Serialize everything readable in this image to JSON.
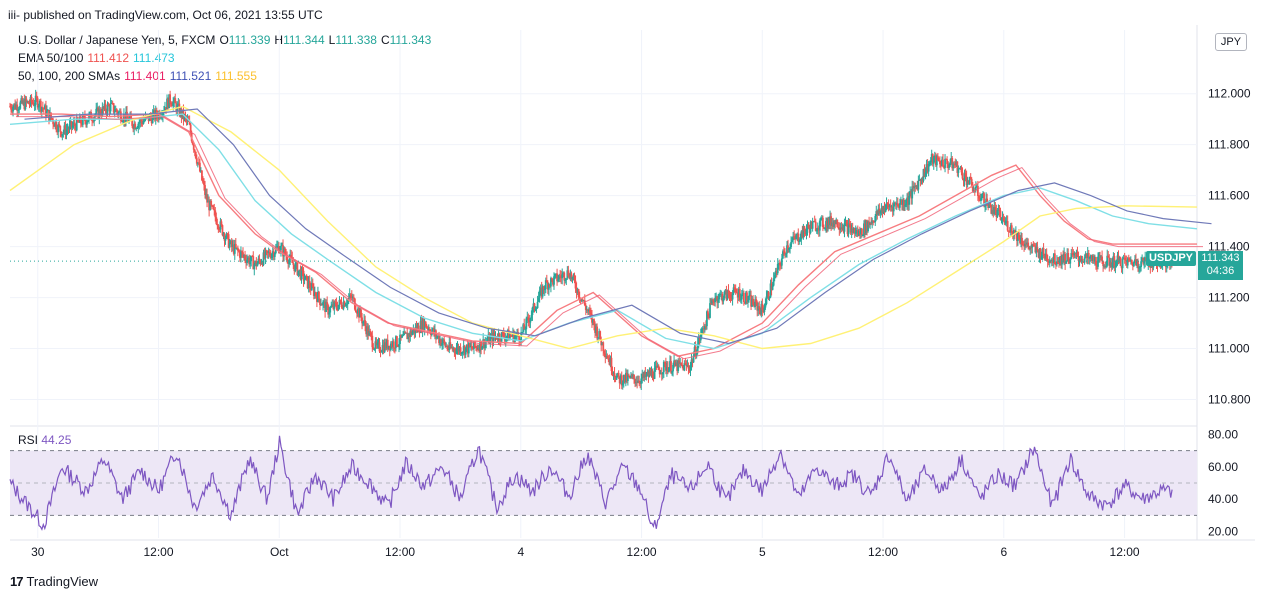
{
  "header": {
    "published": "iii- published on TradingView.com, Oct 06, 2021 13:55 UTC"
  },
  "legend": {
    "symbol": "U.S. Dollar / Japanese Yen, 5, FXCM",
    "open_label": "O",
    "open": "111.339",
    "high_label": "H",
    "high": "111.344",
    "low_label": "L",
    "low": "111.338",
    "close_label": "C",
    "close": "111.343",
    "ema_label": "EMA 50/100",
    "ema50": "111.412",
    "ema100": "111.473",
    "sma_label": "50, 100, 200 SMAs",
    "sma50": "111.401",
    "sma100": "111.521",
    "sma200": "111.555"
  },
  "currency_badge": "JPY",
  "last_price_tag": {
    "symbol": "USDJPY",
    "price": "111.343",
    "countdown": "04:36"
  },
  "rsi": {
    "label": "RSI",
    "value": "44.25"
  },
  "colors": {
    "up": "#26a69a",
    "down": "#ef5350",
    "ema50": "#f77c80",
    "ema100": "#7fdfe6",
    "sma50": "#f05a70",
    "sma100": "#6f79b8",
    "sma200": "#fff176",
    "rsi": "#7e57c2",
    "rsi_band": "#ede7f6",
    "tag": "#26a69a"
  },
  "footer": {
    "brand": "TradingView"
  },
  "chart_data": [
    {
      "type": "line",
      "subtype": "candlestick-with-moving-averages",
      "title": "U.S. Dollar / Japanese Yen, 5, FXCM",
      "ylim": [
        110.7,
        112.25
      ],
      "y_ticks": [
        "112.000",
        "111.800",
        "111.600",
        "111.400",
        "111.200",
        "111.000",
        "110.800"
      ],
      "y_tick_values": [
        112.0,
        111.8,
        111.6,
        111.4,
        111.2,
        111.0,
        110.8
      ],
      "x_ticks": [
        "30",
        "12:00",
        "Oct",
        "12:00",
        "4",
        "12:00",
        "5",
        "12:00",
        "6",
        "12:00"
      ],
      "x_tick_positions": [
        0.0,
        1.0,
        2.0,
        3.0,
        4.0,
        5.0,
        6.0,
        7.0,
        8.0,
        9.0
      ],
      "x_range": [
        -0.23,
        9.6
      ],
      "last_price": 111.343,
      "series": [
        {
          "name": "price",
          "x": [
            -0.23,
            0.0,
            0.2,
            0.4,
            0.6,
            0.8,
            1.0,
            1.1,
            1.25,
            1.4,
            1.6,
            1.8,
            2.0,
            2.2,
            2.4,
            2.6,
            2.8,
            3.0,
            3.2,
            3.4,
            3.6,
            3.8,
            4.0,
            4.2,
            4.4,
            4.6,
            4.8,
            5.0,
            5.2,
            5.4,
            5.6,
            5.8,
            6.0,
            6.2,
            6.4,
            6.6,
            6.8,
            7.0,
            7.2,
            7.4,
            7.6,
            7.8,
            8.0,
            8.2,
            8.4,
            8.6,
            8.8,
            9.0,
            9.2,
            9.4,
            9.6
          ],
          "y": [
            111.95,
            111.97,
            111.85,
            111.9,
            111.95,
            111.88,
            111.92,
            111.98,
            111.88,
            111.58,
            111.4,
            111.33,
            111.4,
            111.28,
            111.15,
            111.2,
            111.0,
            111.03,
            111.1,
            111.0,
            111.0,
            111.05,
            111.05,
            111.25,
            111.3,
            111.1,
            110.88,
            110.88,
            110.93,
            110.93,
            111.2,
            111.22,
            111.15,
            111.4,
            111.48,
            111.5,
            111.45,
            111.55,
            111.58,
            111.74,
            111.72,
            111.6,
            111.5,
            111.4,
            111.35,
            111.36,
            111.34,
            111.34,
            111.34,
            111.34,
            111.343
          ]
        },
        {
          "name": "EMA 50",
          "x": [
            -0.23,
            0.2,
            0.6,
            1.0,
            1.25,
            1.5,
            1.8,
            2.0,
            2.3,
            2.6,
            2.9,
            3.2,
            3.6,
            4.0,
            4.3,
            4.6,
            5.0,
            5.3,
            5.6,
            6.0,
            6.3,
            6.6,
            7.0,
            7.3,
            7.6,
            7.9,
            8.1,
            8.3,
            8.5,
            8.7,
            8.9,
            9.1,
            9.25,
            9.4,
            9.6
          ],
          "y": [
            111.92,
            111.92,
            111.91,
            111.92,
            111.85,
            111.6,
            111.45,
            111.38,
            111.3,
            111.18,
            111.1,
            111.07,
            111.03,
            111.02,
            111.15,
            111.22,
            111.05,
            110.97,
            111.0,
            111.1,
            111.25,
            111.38,
            111.46,
            111.52,
            111.6,
            111.68,
            111.72,
            111.6,
            111.5,
            111.43,
            111.41,
            111.41,
            111.41,
            111.41,
            111.41
          ]
        },
        {
          "name": "EMA 100",
          "x": [
            -0.23,
            0.3,
            0.8,
            1.2,
            1.5,
            1.8,
            2.1,
            2.4,
            2.8,
            3.2,
            3.6,
            4.0,
            4.4,
            4.8,
            5.2,
            5.6,
            6.0,
            6.4,
            6.8,
            7.2,
            7.6,
            8.0,
            8.3,
            8.6,
            8.9,
            9.2,
            9.6
          ],
          "y": [
            111.88,
            111.9,
            111.9,
            111.92,
            111.78,
            111.58,
            111.45,
            111.35,
            111.22,
            111.12,
            111.06,
            111.03,
            111.1,
            111.15,
            111.04,
            111.0,
            111.06,
            111.2,
            111.33,
            111.43,
            111.52,
            111.6,
            111.63,
            111.58,
            111.52,
            111.49,
            111.47
          ]
        },
        {
          "name": "SMA 200",
          "x": [
            -0.23,
            0.3,
            0.8,
            1.2,
            1.6,
            2.0,
            2.4,
            2.8,
            3.2,
            3.6,
            4.0,
            4.4,
            4.8,
            5.2,
            5.6,
            6.0,
            6.4,
            6.8,
            7.2,
            7.6,
            8.0,
            8.3,
            8.6,
            9.0,
            9.6
          ],
          "y": [
            111.62,
            111.8,
            111.9,
            111.95,
            111.85,
            111.7,
            111.5,
            111.32,
            111.2,
            111.1,
            111.05,
            111.0,
            111.05,
            111.08,
            111.05,
            111.0,
            111.02,
            111.08,
            111.18,
            111.3,
            111.42,
            111.52,
            111.55,
            111.56,
            111.555
          ]
        }
      ]
    },
    {
      "type": "line",
      "title": "RSI",
      "ylim": [
        16,
        84
      ],
      "y_ticks": [
        "80.00",
        "60.00",
        "40.00",
        "20.00"
      ],
      "y_tick_values": [
        80,
        60,
        40,
        20
      ],
      "bands": [
        30,
        50,
        70
      ],
      "series": [
        {
          "name": "RSI",
          "x": [
            -0.23,
            0.05,
            0.2,
            0.4,
            0.55,
            0.7,
            0.85,
            1.0,
            1.15,
            1.3,
            1.45,
            1.6,
            1.75,
            1.9,
            2.0,
            2.15,
            2.3,
            2.45,
            2.6,
            2.75,
            2.9,
            3.05,
            3.2,
            3.35,
            3.5,
            3.65,
            3.8,
            3.95,
            4.1,
            4.25,
            4.4,
            4.55,
            4.7,
            4.85,
            5.0,
            5.1,
            5.25,
            5.4,
            5.55,
            5.7,
            5.85,
            6.0,
            6.15,
            6.3,
            6.45,
            6.6,
            6.75,
            6.9,
            7.05,
            7.2,
            7.35,
            7.5,
            7.65,
            7.8,
            7.95,
            8.1,
            8.25,
            8.4,
            8.55,
            8.7,
            8.85,
            9.0,
            9.15,
            9.3,
            9.4
          ],
          "y": [
            50,
            24,
            60,
            45,
            65,
            40,
            58,
            45,
            70,
            35,
            55,
            30,
            65,
            40,
            75,
            30,
            55,
            40,
            60,
            50,
            35,
            62,
            48,
            60,
            40,
            72,
            35,
            55,
            45,
            60,
            42,
            68,
            38,
            60,
            45,
            20,
            55,
            45,
            62,
            38,
            58,
            45,
            70,
            40,
            60,
            48,
            55,
            42,
            68,
            38,
            58,
            45,
            65,
            40,
            55,
            48,
            72,
            35,
            65,
            42,
            36,
            48,
            40,
            45,
            44.25
          ]
        }
      ]
    }
  ]
}
